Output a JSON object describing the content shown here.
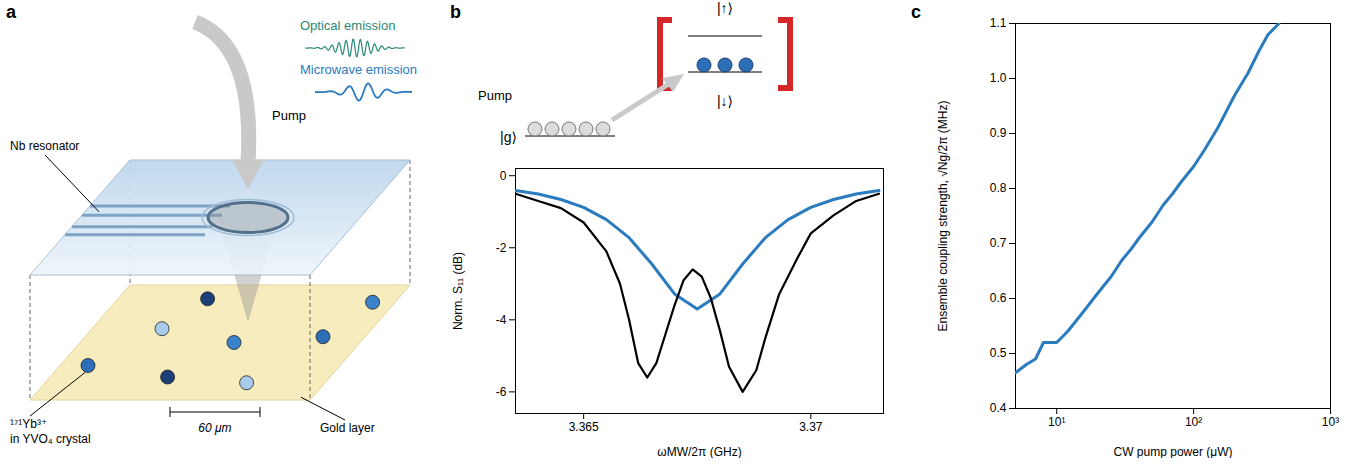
{
  "figure_a": {
    "panel": "a",
    "pump": "Pump",
    "optical_emission": "Optical emission",
    "microwave_emission": "Microwave emission",
    "resonator": "Nb resonator",
    "ions": [
      "¹⁷¹Yb³⁺",
      "in YVO₄ crystal"
    ],
    "scale_bar": "60 μm",
    "gold": "Gold layer"
  },
  "figure_b_schematic": {
    "pump": "Pump",
    "upper": "|↑⟩",
    "lower": "|↓⟩",
    "ground": "|g⟩"
  },
  "chart_data": [
    {
      "panel": "b",
      "type": "line",
      "x_label": "ωMW/2π (GHz)",
      "y_label": "Norm. S₁₁ (dB)",
      "xlim": [
        3.3635,
        3.3716
      ],
      "xticks": [
        3.365,
        3.37
      ],
      "ylim": [
        -6.6,
        0.2
      ],
      "yticks": [
        0,
        -2,
        -4,
        -6
      ],
      "grid": false,
      "series": [
        {
          "color": "#2b7bbf",
          "x": [
            3.3635,
            3.364,
            3.3645,
            3.365,
            3.3655,
            3.366,
            3.3665,
            3.367,
            3.3675,
            3.368,
            3.3685,
            3.369,
            3.3695,
            3.37,
            3.3705,
            3.371,
            3.3715
          ],
          "values": [
            -0.41,
            -0.51,
            -0.66,
            -0.88,
            -1.22,
            -1.72,
            -2.45,
            -3.28,
            -3.7,
            -3.28,
            -2.45,
            -1.72,
            -1.22,
            -0.88,
            -0.66,
            -0.51,
            -0.41
          ]
        },
        {
          "color": "#000000",
          "x": [
            3.3635,
            3.364,
            3.3645,
            3.365,
            3.3655,
            3.3658,
            3.366,
            3.3662,
            3.3664,
            3.3666,
            3.3668,
            3.367,
            3.3672,
            3.3674,
            3.3676,
            3.3678,
            3.368,
            3.3682,
            3.3685,
            3.3688,
            3.369,
            3.3693,
            3.3697,
            3.37,
            3.3705,
            3.371,
            3.3715
          ],
          "values": [
            -0.5,
            -0.7,
            -0.9,
            -1.3,
            -2.1,
            -3.0,
            -4.0,
            -5.2,
            -5.6,
            -5.2,
            -4.4,
            -3.6,
            -2.9,
            -2.6,
            -2.8,
            -3.4,
            -4.3,
            -5.3,
            -6.0,
            -5.4,
            -4.5,
            -3.3,
            -2.3,
            -1.6,
            -1.1,
            -0.7,
            -0.5
          ]
        }
      ]
    },
    {
      "panel": "c",
      "type": "line",
      "log": "x",
      "x_label": "CW pump power (μW)",
      "y_label": "Ensemble coupling strength, √Ng/2π (MHz)",
      "xlim": [
        5,
        1000
      ],
      "xticks": [
        {
          "value": 10,
          "label": "10¹"
        },
        {
          "value": 100,
          "label": "10²"
        },
        {
          "value": 1000,
          "label": "10³"
        }
      ],
      "ylim": [
        0.4,
        1.1
      ],
      "yticks": [
        0.4,
        0.5,
        0.6,
        0.7,
        0.8,
        0.9,
        {
          "value": 1,
          "label": "1.0"
        },
        1.1
      ],
      "grid": false,
      "series": [
        {
          "color": "#2b7bbf",
          "x": [
            5,
            6,
            7,
            8,
            9,
            10,
            12,
            15,
            20,
            25,
            30,
            35,
            40,
            50,
            60,
            70,
            80,
            100,
            120,
            150,
            200,
            250,
            300,
            350,
            420
          ],
          "values": [
            0.465,
            0.48,
            0.49,
            0.52,
            0.52,
            0.52,
            0.54,
            0.57,
            0.61,
            0.64,
            0.67,
            0.69,
            0.71,
            0.74,
            0.77,
            0.79,
            0.81,
            0.84,
            0.87,
            0.91,
            0.97,
            1.01,
            1.05,
            1.08,
            1.1
          ]
        }
      ]
    }
  ]
}
